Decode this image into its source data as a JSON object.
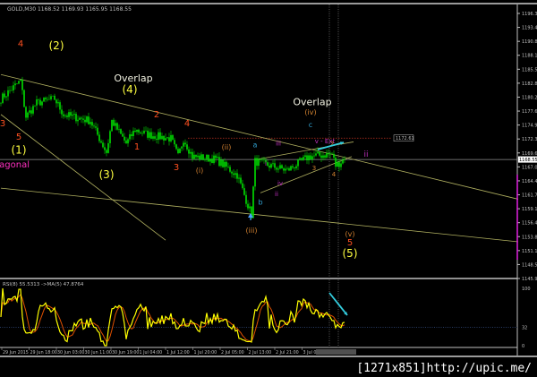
{
  "window": {
    "title": "GOLD,M30  1168.52 1169.93 1165.95 1168.55",
    "watermark": "[1271x851]http://upic.me/"
  },
  "colors": {
    "candle": "#00e000",
    "rsi": "#ffff00",
    "rsi_ma": "#e05000",
    "axis": "#c0c0c0",
    "arrow": "#33ccdd",
    "magenta": "#e020e0",
    "trend": "#b0b060"
  },
  "chart_data": [
    {
      "type": "candlestick",
      "symbol": "GOLD,M30",
      "ylim": [
        1145.92,
        1196.32
      ],
      "y_ticks": [
        "1196.32",
        "1193.47",
        "1190.82",
        "1188.17",
        "1185.52",
        "1182.87",
        "1180.27",
        "1177.62",
        "1174.97",
        "1172.32",
        "1169.67",
        "1167.02",
        "1164.42",
        "1161.77",
        "1159.12",
        "1156.47",
        "1153.82",
        "1151.17",
        "1148.57",
        "1145.92"
      ],
      "current_price": "1168.55",
      "level_line": {
        "price": 1172.61,
        "label": "1172.61"
      },
      "x_ticks": [
        "29 Jun 2015",
        "29 Jun 18:00",
        "30 Jun 03:00",
        "30 Jun 11:00",
        "30 Jun 19:00",
        "1 Jul 04:00",
        "1 Jul 12:00",
        "1 Jul 20:00",
        "2 Jul 05:00",
        "2 Jul 13:00",
        "2 Jul 21:00",
        "3 Jul 06:00"
      ],
      "price_path": [
        [
          0,
          1180.1
        ],
        [
          11,
          1183.5
        ],
        [
          14,
          1176.7
        ],
        [
          20,
          1179.3
        ],
        [
          30,
          1180.1
        ],
        [
          35,
          1177.1
        ],
        [
          50,
          1175.9
        ],
        [
          59,
          1169.9
        ],
        [
          62,
          1175.9
        ],
        [
          70,
          1171.6
        ],
        [
          75,
          1174.2
        ],
        [
          82,
          1173.3
        ],
        [
          95,
          1172.5
        ],
        [
          99,
          1169.1
        ],
        [
          102,
          1172.5
        ],
        [
          107,
          1169.1
        ],
        [
          120,
          1168.6
        ],
        [
          132,
          1165.6
        ],
        [
          140,
          1158.0
        ],
        [
          142,
          1168.2
        ],
        [
          150,
          1167.4
        ],
        [
          160,
          1166.5
        ],
        [
          172,
          1169.1
        ],
        [
          185,
          1169.6
        ],
        [
          187,
          1167.4
        ],
        [
          192,
          1168.6
        ]
      ],
      "trendlines": [
        [
          [
            0,
            1184.7
          ],
          [
            289,
            1161.0
          ]
        ],
        [
          [
            0,
            1163.1
          ],
          [
            289,
            1152.9
          ]
        ],
        [
          [
            0,
            1177.1
          ],
          [
            92,
            1153.2
          ]
        ],
        [
          [
            142,
            1168.5
          ],
          [
            197,
            1171.9
          ]
        ],
        [
          [
            145,
            1162.2
          ],
          [
            196,
            1169.1
          ]
        ]
      ],
      "annotations": [
        {
          "text": "4",
          "color": "#ff5020",
          "bar": 11,
          "price": 1190.0,
          "size": 10
        },
        {
          "text": "(2)",
          "color": "#ffff40",
          "bar": 31,
          "price": 1189.5,
          "size": 12
        },
        {
          "text": "Overlap",
          "color": "#f0f0e0",
          "bar": 74,
          "price": 1183.4,
          "size": 11
        },
        {
          "text": "(4)",
          "color": "#ffff40",
          "bar": 72,
          "price": 1181.2,
          "size": 12
        },
        {
          "text": "3",
          "color": "#ff5020",
          "bar": 1,
          "price": 1174.9,
          "size": 10
        },
        {
          "text": "5",
          "color": "#ff5020",
          "bar": 10,
          "price": 1172.3,
          "size": 10
        },
        {
          "text": "(1)",
          "color": "#ffff40",
          "bar": 10,
          "price": 1169.7,
          "size": 12
        },
        {
          "text": "ding Diagonal",
          "color": "#ff30c0",
          "bar": 16,
          "price": 1167.0,
          "size": 10
        },
        {
          "text": "(3)",
          "color": "#ffff40",
          "bar": 59,
          "price": 1165.0,
          "size": 12
        },
        {
          "text": "2",
          "color": "#ff5020",
          "bar": 87,
          "price": 1176.6,
          "size": 10
        },
        {
          "text": "1",
          "color": "#ff5020",
          "bar": 76,
          "price": 1170.4,
          "size": 10
        },
        {
          "text": "4",
          "color": "#ff5020",
          "bar": 104,
          "price": 1174.9,
          "size": 10
        },
        {
          "text": "3",
          "color": "#ff5020",
          "bar": 98,
          "price": 1166.5,
          "size": 10
        },
        {
          "text": "(i)",
          "color": "#d08030",
          "bar": 111,
          "price": 1166.0,
          "size": 8
        },
        {
          "text": "(ii)",
          "color": "#d08030",
          "bar": 126,
          "price": 1170.4,
          "size": 8
        },
        {
          "text": "a",
          "color": "#30a0d0",
          "bar": 142,
          "price": 1170.9,
          "size": 8
        },
        {
          "text": "b",
          "color": "#30a0d0",
          "bar": 145,
          "price": 1160.0,
          "size": 8
        },
        {
          "text": "(iii)",
          "color": "#d08030",
          "bar": 140,
          "price": 1154.6,
          "size": 8
        },
        {
          "text": "c",
          "color": "#30a0d0",
          "bar": 173,
          "price": 1174.7,
          "size": 8
        },
        {
          "text": "Overlap",
          "color": "#f0f0e0",
          "bar": 174,
          "price": 1178.9,
          "size": 11
        },
        {
          "text": "(iv)",
          "color": "#d08030",
          "bar": 173,
          "price": 1177.1,
          "size": 8
        },
        {
          "text": "i",
          "color": "#c030c0",
          "bar": 148,
          "price": 1167.4,
          "size": 7
        },
        {
          "text": "ii",
          "color": "#c030c0",
          "bar": 154,
          "price": 1161.6,
          "size": 7
        },
        {
          "text": "iii",
          "color": "#c030c0",
          "bar": 155,
          "price": 1171.2,
          "size": 7
        },
        {
          "text": "iv",
          "color": "#c030c0",
          "bar": 156,
          "price": 1163.6,
          "size": 7
        },
        {
          "text": "v - Ext",
          "color": "#c030c0",
          "bar": 181,
          "price": 1171.6,
          "size": 7
        },
        {
          "text": "2",
          "color": "#d08030",
          "bar": 185,
          "price": 1171.1,
          "size": 7
        },
        {
          "text": "3",
          "color": "#d08030",
          "bar": 175,
          "price": 1166.5,
          "size": 7
        },
        {
          "text": "4",
          "color": "#d08030",
          "bar": 186,
          "price": 1165.3,
          "size": 7
        },
        {
          "text": "ii",
          "color": "#c030c0",
          "bar": 204,
          "price": 1169.1,
          "size": 9
        },
        {
          "text": "(v)",
          "color": "#d08030",
          "bar": 195,
          "price": 1153.9,
          "size": 8
        },
        {
          "text": "5",
          "color": "#ff5020",
          "bar": 195,
          "price": 1152.2,
          "size": 10
        },
        {
          "text": "(5)",
          "color": "#ffff40",
          "bar": 195,
          "price": 1150.0,
          "size": 12
        }
      ]
    },
    {
      "type": "line",
      "title": "RSI(8) 55.5313  ->MA(5) 47.8764",
      "ylim": [
        0,
        100
      ],
      "y_ticks": [
        "100",
        "32",
        "0"
      ],
      "level": 32
    }
  ]
}
